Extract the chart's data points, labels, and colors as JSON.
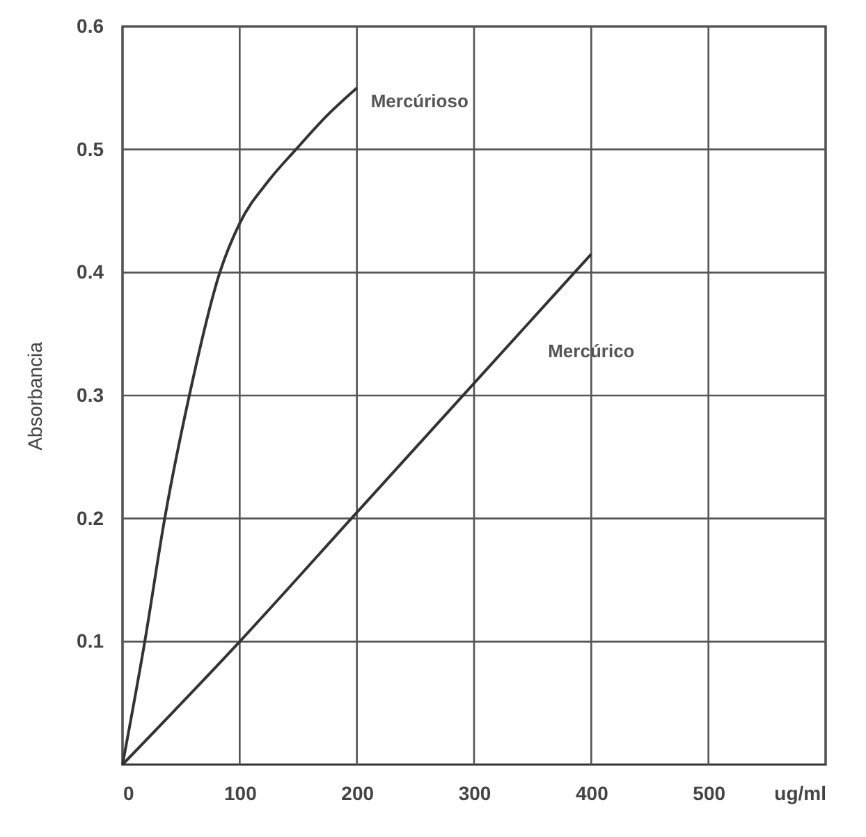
{
  "chart_data": {
    "type": "line",
    "ylabel": "Absorbancia",
    "xlim": [
      0,
      600
    ],
    "xticks": [
      0,
      100,
      200,
      300,
      400,
      500,
      {
        "value": 600,
        "label": "ug/ml"
      }
    ],
    "ylim": [
      0,
      0.6
    ],
    "yticks": [
      0.1,
      0.2,
      0.3,
      0.4,
      0.5,
      0.6
    ],
    "grid": true,
    "marker": "none",
    "line_style": "solid",
    "series": [
      {
        "name": "Mercúrioso",
        "color": "#333333",
        "x": [
          0,
          19,
          36,
          57,
          83,
          100,
          125,
          148,
          175,
          200
        ],
        "values": [
          0,
          0.1,
          0.2,
          0.3,
          0.4,
          0.44,
          0.475,
          0.5,
          0.528,
          0.55
        ]
      },
      {
        "name": "Mercúrico",
        "color": "#333333",
        "x": [
          0,
          100,
          200,
          300,
          400
        ],
        "values": [
          0,
          0.1,
          0.205,
          0.31,
          0.415
        ]
      }
    ]
  }
}
